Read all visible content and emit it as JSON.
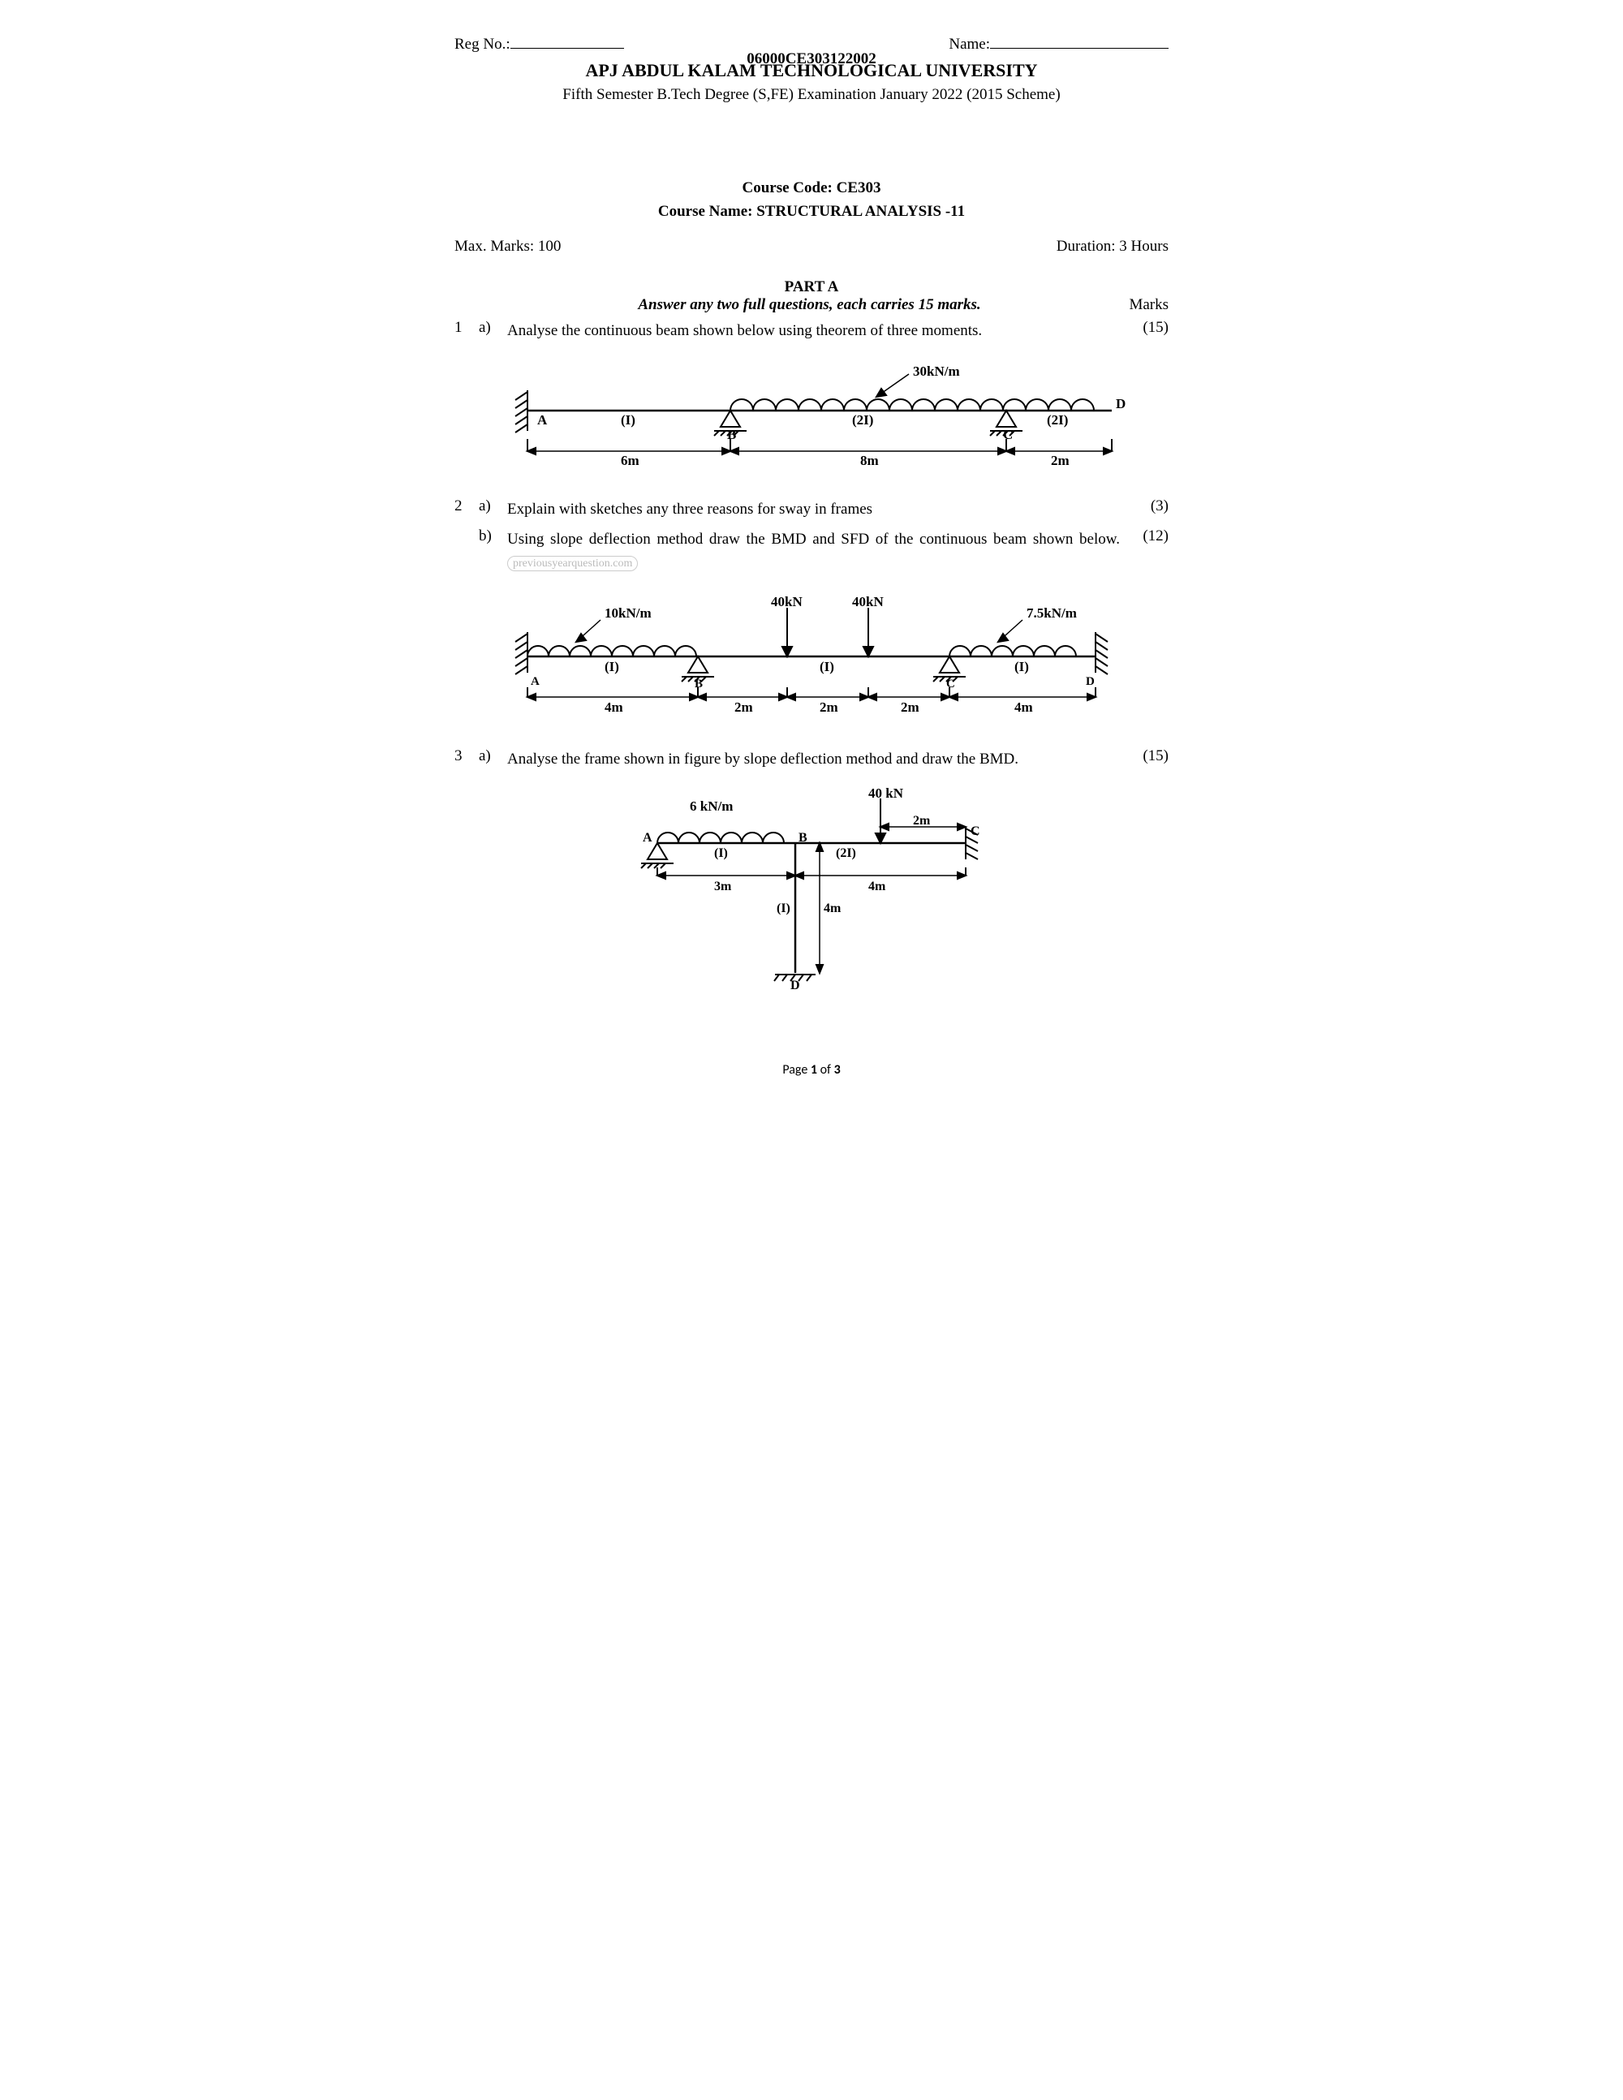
{
  "header": {
    "reg_label": "Reg No.:",
    "name_label": "Name:",
    "exam_code": "06000CE303122002",
    "university": "APJ ABDUL KALAM TECHNOLOGICAL UNIVERSITY",
    "subtitle": "Fifth Semester B.Tech Degree (S,FE) Examination January 2022 (2015 Scheme)"
  },
  "course": {
    "code_label": "Course Code: CE303",
    "name_label": "Course Name: STRUCTURAL ANALYSIS -11"
  },
  "marks_row": {
    "max_marks": "Max. Marks: 100",
    "duration": "Duration: 3 Hours"
  },
  "part_a": {
    "title": "PART A",
    "instruction": "Answer any two full questions, each carries 15 marks.",
    "marks_header": "Marks"
  },
  "q1": {
    "num": "1",
    "sub": "a)",
    "text": "Analyse the continuous beam shown below using theorem of three moments.",
    "marks": "(15)"
  },
  "q2a": {
    "num": "2",
    "sub": "a)",
    "text": "Explain with sketches any three reasons for sway in frames",
    "marks": "(3)"
  },
  "q2b": {
    "sub": "b)",
    "text_a": "Using slope deflection method draw the BMD and SFD of the continuous beam shown below.",
    "marks": "(12)"
  },
  "q3": {
    "num": "3",
    "sub": "a)",
    "text": "Analyse the frame shown in figure by slope deflection method and draw the BMD.",
    "marks": "(15)"
  },
  "watermark_text": "previousyearquestion.com",
  "footer": {
    "page_a": "Page ",
    "page_num": "1",
    "page_b": " of ",
    "page_total": "3"
  },
  "fig1": {
    "load_label": "30kN/m",
    "nodes": [
      "A",
      "B",
      "C",
      "D"
    ],
    "spans": [
      "(I)",
      "(2I)",
      "(2I)"
    ],
    "dims": [
      "6m",
      "8m",
      "2m"
    ]
  },
  "fig2": {
    "udl1": "10kN/m",
    "p1": "40kN",
    "p2": "40kN",
    "udl2": "7.5kN/m",
    "nodes": [
      "A",
      "B",
      "C",
      "D"
    ],
    "spans": [
      "(I)",
      "(I)",
      "(I)"
    ],
    "dims": [
      "4m",
      "2m",
      "2m",
      "2m",
      "4m"
    ]
  },
  "fig3": {
    "udl": "6 kN/m",
    "p": "40 kN",
    "nodes": [
      "A",
      "B",
      "C",
      "D"
    ],
    "span_ab": "(I)",
    "span_bc": "(2I)",
    "span_bd": "(I)",
    "dim_ab": "3m",
    "dim_bc": "4m",
    "dim_p": "2m",
    "dim_bd": "4m"
  },
  "colors": {
    "line": "#000000",
    "bg": "#ffffff"
  }
}
